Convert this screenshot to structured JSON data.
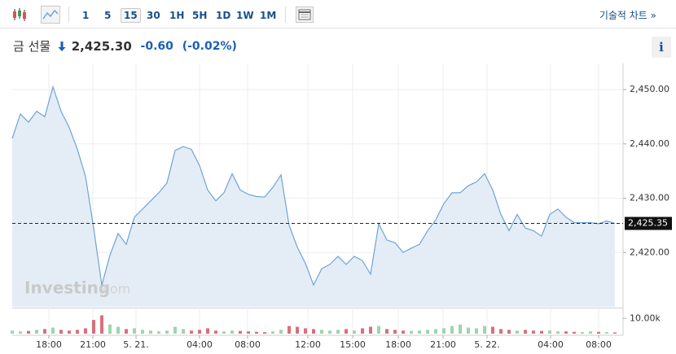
{
  "toolbar": {
    "intervals": [
      "1",
      "5",
      "15",
      "30",
      "1H",
      "5H",
      "1D",
      "1W",
      "1M"
    ],
    "selected_interval": 2,
    "advanced_chart": "기술적 차트 »"
  },
  "quote": {
    "name": "금 선물",
    "price": "2,425.30",
    "change": "-0.60",
    "change_percent": "(-0.02%)"
  },
  "watermark": {
    "brand": "Investing",
    "domain": ".com"
  },
  "chart_data": {
    "type": "area",
    "color": "#6fa3d6",
    "fill_color": "#e4edf6",
    "values": [
      2441,
      2445.5,
      2444,
      2446,
      2445,
      2450.5,
      2446,
      2443,
      2439,
      2434,
      2424.5,
      2414,
      2419.5,
      2423.5,
      2421.5,
      2426.5,
      2428,
      2429.5,
      2431,
      2432.8,
      2438.8,
      2439.5,
      2439,
      2436,
      2431.5,
      2429.5,
      2431,
      2434.5,
      2431.5,
      2430.7,
      2430.3,
      2430.2,
      2432,
      2434.3,
      2425,
      2421,
      2418,
      2414,
      2417,
      2417.8,
      2419.3,
      2417.8,
      2419.3,
      2418.5,
      2416,
      2425.3,
      2422.3,
      2421.8,
      2420,
      2420.8,
      2421.5,
      2424,
      2426,
      2429,
      2431,
      2431,
      2432.3,
      2433,
      2434.5,
      2431.5,
      2427,
      2424,
      2427,
      2424.5,
      2424,
      2423,
      2427,
      2428,
      2426.5,
      2425.5,
      2425.5,
      2425.5,
      2425.3,
      2425.8,
      2425.35
    ],
    "xlim": [
      0,
      74
    ],
    "xticks": [
      {
        "value": 4.5,
        "label": "18:00"
      },
      {
        "value": 9.9,
        "label": "21:00"
      },
      {
        "value": 15.2,
        "label": "5. 21."
      },
      {
        "value": 23,
        "label": "04:00"
      },
      {
        "value": 28.9,
        "label": "08:00"
      },
      {
        "value": 36.3,
        "label": "12:00"
      },
      {
        "value": 41.8,
        "label": "15:00"
      },
      {
        "value": 47.4,
        "label": "18:00"
      },
      {
        "value": 52.9,
        "label": "21:00"
      },
      {
        "value": 58.3,
        "label": "5. 22."
      },
      {
        "value": 66.1,
        "label": "04:00"
      },
      {
        "value": 72,
        "label": "08:00"
      }
    ],
    "ylim": [
      2410,
      2454.2
    ],
    "yticks": [
      {
        "value": 2420,
        "label": "2,420.00"
      },
      {
        "value": 2430,
        "label": "2,430.00"
      },
      {
        "value": 2440,
        "label": "2,440.00"
      },
      {
        "value": 2450,
        "label": "2,450.00"
      }
    ],
    "last_price": {
      "value": 2425.35,
      "label": "2,425.35"
    },
    "grid": true,
    "volume": {
      "values": [
        2000,
        1500,
        1800,
        2500,
        3000,
        4000,
        2500,
        2000,
        2500,
        3500,
        9000,
        12000,
        6000,
        4500,
        3000,
        3500,
        2500,
        2000,
        1500,
        2000,
        4500,
        3000,
        2000,
        2500,
        3500,
        2000,
        1500,
        2000,
        1800,
        1500,
        1200,
        1000,
        1500,
        2500,
        5000,
        4500,
        3500,
        3000,
        2500,
        2000,
        2500,
        3000,
        2000,
        3500,
        4500,
        5000,
        3000,
        2500,
        2000,
        1800,
        2000,
        2500,
        3000,
        3500,
        5000,
        6000,
        4000,
        3500,
        5000,
        4500,
        3000,
        2500,
        2000,
        2500,
        2000,
        1800,
        2000,
        1500,
        1500,
        1200,
        1000,
        1500,
        1200,
        1000,
        800
      ],
      "ylim": [
        0,
        16000
      ],
      "yticks": [
        {
          "value": 10000,
          "label": "10.00k"
        }
      ],
      "up_color": "#9fd4ad",
      "down_color": "#d9707a"
    }
  }
}
